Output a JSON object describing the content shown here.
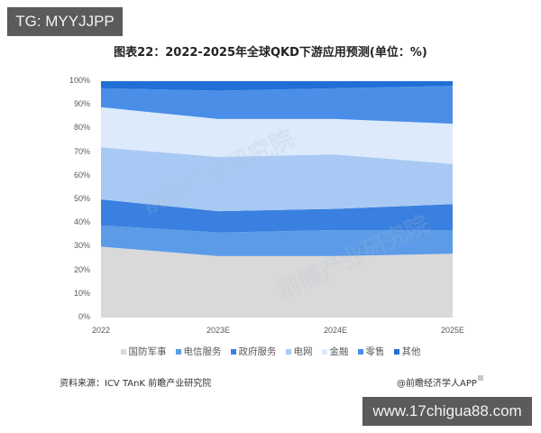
{
  "badges": {
    "top_left": "TG: MYYJJPP",
    "bottom_right": "www.17chigua88.com"
  },
  "chart_data": {
    "type": "area",
    "stacked": true,
    "percent": true,
    "title": "图表22：2022-2025年全球QKD下游应用预测(单位：%)",
    "xlabel": "",
    "ylabel": "",
    "categories": [
      "2022",
      "2023E",
      "2024E",
      "2025E"
    ],
    "y_ticks": [
      "0%",
      "10%",
      "20%",
      "30%",
      "40%",
      "50%",
      "60%",
      "70%",
      "80%",
      "90%",
      "100%"
    ],
    "ylim": [
      0,
      100
    ],
    "grid": false,
    "legend_position": "bottom",
    "series": [
      {
        "name": "国防军事",
        "color": "#d9d9d9",
        "values": [
          30,
          26,
          26,
          27
        ]
      },
      {
        "name": "电信服务",
        "color": "#5b9be8",
        "values": [
          9,
          10,
          11,
          10
        ]
      },
      {
        "name": "政府服务",
        "color": "#3a80e0",
        "values": [
          11,
          9,
          9,
          11
        ]
      },
      {
        "name": "电网",
        "color": "#a8c9f3",
        "values": [
          22,
          23,
          23,
          17
        ]
      },
      {
        "name": "金融",
        "color": "#dceafc",
        "values": [
          17,
          16,
          15,
          17
        ]
      },
      {
        "name": "零售",
        "color": "#4a8ee8",
        "values": [
          8,
          12,
          13,
          16
        ]
      },
      {
        "name": "其他",
        "color": "#1f6fd6",
        "values": [
          3,
          4,
          3,
          2
        ]
      }
    ]
  },
  "footer": {
    "source": "资料来源：ICV TAnK 前瞻产业研究院",
    "credit": "@前瞻经济学人APP"
  },
  "watermark": "前瞻产业研究院"
}
